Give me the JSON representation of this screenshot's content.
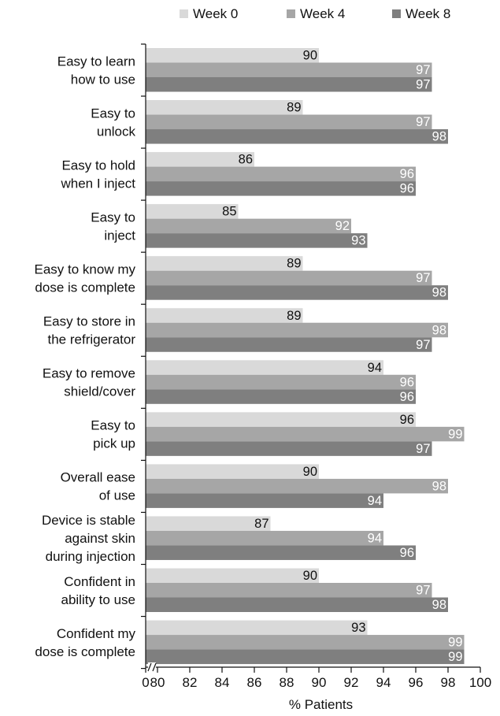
{
  "chart_data": {
    "type": "bar",
    "orientation": "horizontal",
    "categories": [
      [
        "Easy to learn",
        "how to use"
      ],
      [
        "Easy to",
        "unlock"
      ],
      [
        "Easy to hold",
        "when I inject"
      ],
      [
        "Easy to",
        "inject"
      ],
      [
        "Easy to know my",
        "dose is complete"
      ],
      [
        "Easy to store in",
        "the refrigerator"
      ],
      [
        "Easy to remove",
        "shield/cover"
      ],
      [
        "Easy to",
        "pick up"
      ],
      [
        "Overall ease",
        "of use"
      ],
      [
        "Device is stable",
        "against skin",
        "during injection"
      ],
      [
        "Confident in",
        "ability to use"
      ],
      [
        "Confident my",
        "dose is complete"
      ]
    ],
    "series": [
      {
        "name": "Week 0",
        "color": "#d9d9d9",
        "label_color": "#111111",
        "values": [
          90,
          89,
          86,
          85,
          89,
          89,
          94,
          96,
          90,
          87,
          90,
          93
        ]
      },
      {
        "name": "Week 4",
        "color": "#a6a6a6",
        "label_color": "#ffffff",
        "values": [
          97,
          97,
          96,
          92,
          97,
          98,
          96,
          99,
          98,
          94,
          97,
          99
        ]
      },
      {
        "name": "Week 8",
        "color": "#7f7f7f",
        "label_color": "#ffffff",
        "values": [
          97,
          98,
          96,
          93,
          98,
          97,
          96,
          97,
          94,
          96,
          98,
          99
        ]
      }
    ],
    "xlabel": "% Patients",
    "xticks": [
      0,
      80,
      82,
      84,
      86,
      88,
      90,
      92,
      94,
      96,
      98,
      100
    ],
    "xlim": [
      78,
      100
    ],
    "axis_break": true,
    "legend_position": "top",
    "grid": false
  }
}
